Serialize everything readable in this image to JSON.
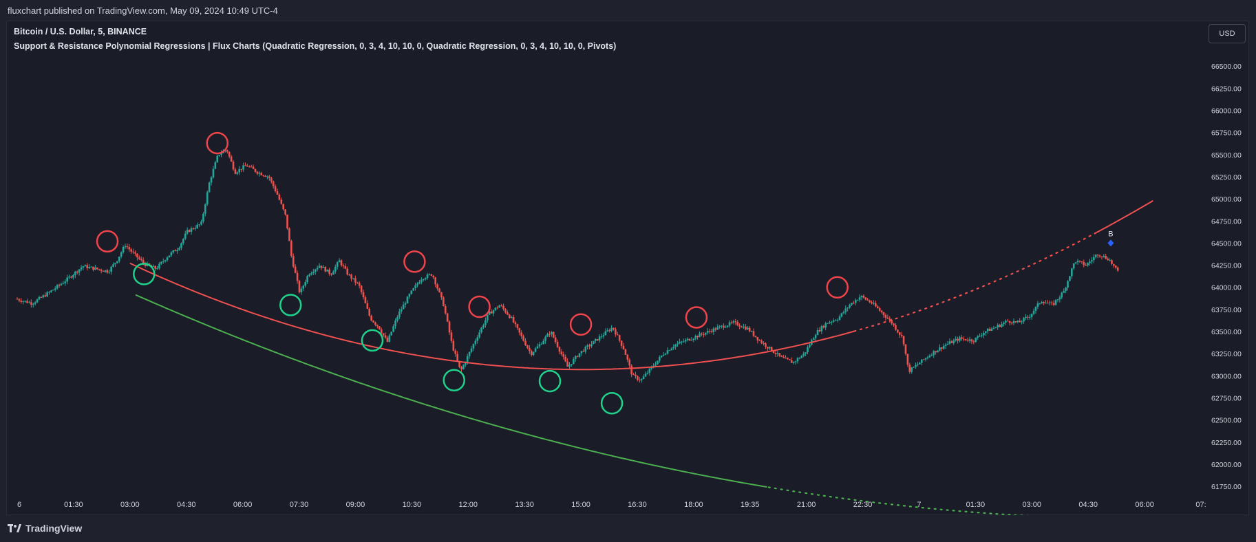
{
  "header": {
    "published_text": "fluxchart published on TradingView.com, May 09, 2024 10:49 UTC-4"
  },
  "legend": {
    "symbol_line": "Bitcoin / U.S. Dollar, 5, BINANCE",
    "indicator_line": "Support & Resistance Polynomial Regressions | Flux Charts (Quadratic Regression, 0, 3, 4, 10, 10, 0, Quadratic Regression, 0, 3, 4, 10, 10, 0, Pivots)"
  },
  "currency_button": "USD",
  "footer": {
    "brand": "TradingView"
  },
  "colors": {
    "up": "#26a69a",
    "down": "#ef5350",
    "resistance": "#f05050",
    "support": "#4caf50",
    "pivot_high_circle": "#f0444c",
    "pivot_low_circle": "#1fd28c",
    "signal": "#2962ff",
    "axis_text": "#d1d4dc"
  },
  "chart_data": {
    "type": "candlestick",
    "symbol": "Bitcoin / U.S. Dollar, 5, BINANCE",
    "ylim": [
      61650,
      66750
    ],
    "y_ticks": [
      "66500.00",
      "66250.00",
      "66000.00",
      "65750.00",
      "65500.00",
      "65250.00",
      "65000.00",
      "64750.00",
      "64500.00",
      "64250.00",
      "64000.00",
      "63750.00",
      "63500.00",
      "63250.00",
      "63000.00",
      "62750.00",
      "62500.00",
      "62250.00",
      "62000.00",
      "61750.00"
    ],
    "x_ticks": [
      "6",
      "01:30",
      "03:00",
      "04:30",
      "06:00",
      "07:30",
      "09:00",
      "10:30",
      "12:00",
      "13:30",
      "15:00",
      "16:30",
      "18:00",
      "19:35",
      "21:00",
      "22:30",
      "7",
      "01:30",
      "03:00",
      "04:30",
      "06:00",
      "07:"
    ],
    "x_range": [
      0,
      21
    ],
    "price_path": [
      [
        0.0,
        63870
      ],
      [
        0.3,
        63820
      ],
      [
        0.6,
        63940
      ],
      [
        0.9,
        64080
      ],
      [
        1.2,
        64240
      ],
      [
        1.5,
        64200
      ],
      [
        1.65,
        64180
      ],
      [
        1.8,
        64300
      ],
      [
        1.95,
        64480
      ],
      [
        2.1,
        64380
      ],
      [
        2.3,
        64260
      ],
      [
        2.5,
        64210
      ],
      [
        2.7,
        64350
      ],
      [
        2.9,
        64450
      ],
      [
        3.05,
        64630
      ],
      [
        3.3,
        64720
      ],
      [
        3.45,
        65200
      ],
      [
        3.6,
        65500
      ],
      [
        3.75,
        65560
      ],
      [
        3.9,
        65300
      ],
      [
        4.1,
        65380
      ],
      [
        4.3,
        65300
      ],
      [
        4.5,
        65250
      ],
      [
        4.65,
        65050
      ],
      [
        4.8,
        64800
      ],
      [
        4.9,
        64350
      ],
      [
        5.05,
        63930
      ],
      [
        5.2,
        64150
      ],
      [
        5.4,
        64250
      ],
      [
        5.6,
        64150
      ],
      [
        5.75,
        64300
      ],
      [
        5.9,
        64150
      ],
      [
        6.1,
        64020
      ],
      [
        6.3,
        63650
      ],
      [
        6.45,
        63550
      ],
      [
        6.6,
        63380
      ],
      [
        6.8,
        63700
      ],
      [
        7.0,
        63920
      ],
      [
        7.2,
        64100
      ],
      [
        7.4,
        64150
      ],
      [
        7.6,
        63800
      ],
      [
        7.75,
        63350
      ],
      [
        7.9,
        63050
      ],
      [
        8.05,
        63250
      ],
      [
        8.2,
        63450
      ],
      [
        8.4,
        63700
      ],
      [
        8.6,
        63800
      ],
      [
        8.8,
        63650
      ],
      [
        9.0,
        63420
      ],
      [
        9.15,
        63250
      ],
      [
        9.3,
        63350
      ],
      [
        9.5,
        63500
      ],
      [
        9.65,
        63300
      ],
      [
        9.8,
        63100
      ],
      [
        10.0,
        63250
      ],
      [
        10.2,
        63350
      ],
      [
        10.4,
        63450
      ],
      [
        10.6,
        63550
      ],
      [
        10.8,
        63300
      ],
      [
        10.95,
        63000
      ],
      [
        11.1,
        62950
      ],
      [
        11.3,
        63100
      ],
      [
        11.5,
        63250
      ],
      [
        11.7,
        63350
      ],
      [
        11.9,
        63400
      ],
      [
        12.1,
        63450
      ],
      [
        12.3,
        63500
      ],
      [
        12.5,
        63550
      ],
      [
        12.75,
        63600
      ],
      [
        13.0,
        63530
      ],
      [
        13.2,
        63400
      ],
      [
        13.4,
        63300
      ],
      [
        13.6,
        63200
      ],
      [
        13.8,
        63150
      ],
      [
        14.0,
        63250
      ],
      [
        14.2,
        63480
      ],
      [
        14.4,
        63600
      ],
      [
        14.6,
        63650
      ],
      [
        14.8,
        63800
      ],
      [
        15.0,
        63900
      ],
      [
        15.2,
        63820
      ],
      [
        15.4,
        63700
      ],
      [
        15.55,
        63600
      ],
      [
        15.75,
        63420
      ],
      [
        15.85,
        63050
      ],
      [
        16.05,
        63150
      ],
      [
        16.25,
        63250
      ],
      [
        16.5,
        63350
      ],
      [
        16.75,
        63420
      ],
      [
        17.0,
        63400
      ],
      [
        17.2,
        63500
      ],
      [
        17.4,
        63550
      ],
      [
        17.6,
        63620
      ],
      [
        17.8,
        63600
      ],
      [
        18.0,
        63680
      ],
      [
        18.2,
        63850
      ],
      [
        18.4,
        63800
      ],
      [
        18.6,
        63950
      ],
      [
        18.8,
        64300
      ],
      [
        19.0,
        64250
      ],
      [
        19.2,
        64380
      ],
      [
        19.4,
        64320
      ],
      [
        19.55,
        64180
      ]
    ],
    "resistance_curve": {
      "coeffs": [
        64945,
        -373.7,
        18.63
      ],
      "solid_to": 14.85,
      "dotted_to": 19.15,
      "resumes_to": 20.0
    },
    "support_curve": {
      "coeffs": [
        64540,
        -314.0,
        7.8
      ],
      "solid_to": 13.33,
      "dotted_to": 19.3,
      "resumes_to": 20.0
    },
    "pivot_highs": [
      [
        1.6,
        64520
      ],
      [
        3.55,
        65630
      ],
      [
        7.05,
        64290
      ],
      [
        8.2,
        63780
      ],
      [
        10.0,
        63580
      ],
      [
        12.05,
        63660
      ],
      [
        14.55,
        64000
      ]
    ],
    "pivot_lows": [
      [
        2.25,
        64150
      ],
      [
        4.85,
        63800
      ],
      [
        6.3,
        63400
      ],
      [
        7.75,
        62950
      ],
      [
        9.45,
        62940
      ],
      [
        10.55,
        62690
      ]
    ],
    "signal": {
      "label": "B",
      "x": 19.4,
      "y": 64500
    }
  }
}
